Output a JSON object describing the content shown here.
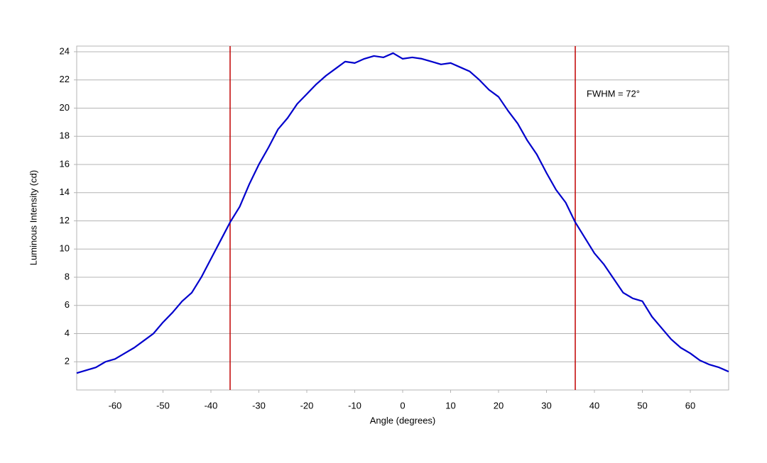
{
  "chart_data": {
    "type": "line",
    "x_label": "Angle (degrees)",
    "y_label": "Luminous Intensity (cd)",
    "annotation": "FWHM = 72°",
    "x": [
      -68,
      -66,
      -64,
      -62,
      -60,
      -58,
      -56,
      -54,
      -52,
      -50,
      -48,
      -46,
      -44,
      -42,
      -40,
      -38,
      -36,
      -34,
      -32,
      -30,
      -28,
      -26,
      -24,
      -22,
      -20,
      -18,
      -16,
      -14,
      -12,
      -10,
      -8,
      -6,
      -4,
      -2,
      0,
      2,
      4,
      6,
      8,
      10,
      12,
      14,
      16,
      18,
      20,
      22,
      24,
      26,
      28,
      30,
      32,
      34,
      36,
      38,
      40,
      42,
      44,
      46,
      48,
      50,
      52,
      54,
      56,
      58,
      60,
      62,
      64,
      66,
      68
    ],
    "series": [
      {
        "color": "#0000cc",
        "values": [
          1.2,
          1.4,
          1.6,
          2.0,
          2.2,
          2.6,
          3.0,
          3.5,
          4.0,
          4.8,
          5.5,
          6.3,
          6.9,
          8.0,
          9.3,
          10.6,
          11.9,
          13.0,
          14.6,
          16.0,
          17.2,
          18.5,
          19.3,
          20.3,
          21.0,
          21.7,
          22.3,
          22.8,
          23.3,
          23.2,
          23.5,
          23.7,
          23.6,
          23.9,
          23.5,
          23.6,
          23.5,
          23.3,
          23.1,
          23.2,
          22.9,
          22.6,
          22.0,
          21.3,
          20.8,
          19.8,
          18.9,
          17.7,
          16.7,
          15.4,
          14.2,
          13.3,
          11.9,
          10.8,
          9.7,
          8.9,
          7.9,
          6.9,
          6.5,
          6.3,
          5.2,
          4.4,
          3.6,
          3.0,
          2.6,
          2.1,
          1.8,
          1.6,
          1.3
        ]
      }
    ],
    "vlines": [
      -36,
      36
    ],
    "vline_color": "#c00000",
    "xlim": [
      -68,
      68
    ],
    "xticks": [
      -60,
      -50,
      -40,
      -30,
      -20,
      -10,
      0,
      10,
      20,
      30,
      40,
      50,
      60
    ],
    "ylim": [
      0,
      24.4
    ],
    "yticks": [
      2,
      4,
      6,
      8,
      10,
      12,
      14,
      16,
      18,
      20,
      22,
      24
    ],
    "grid": true
  }
}
